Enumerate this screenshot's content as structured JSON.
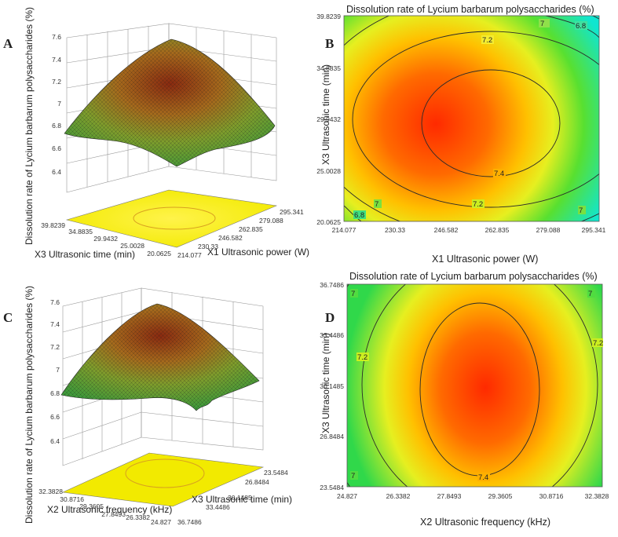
{
  "panels": [
    {
      "id": "A",
      "type": "surface3d",
      "zlabel": "Dissolution rate of Lycium barbarum polysaccharides (%)",
      "zticks": [
        "7.6",
        "7.4",
        "7.2",
        "7",
        "6.8",
        "6.6",
        "6.4"
      ],
      "back_axis_label": "X3 Ultrasonic time (min)",
      "back_axis_ticks": [
        "39.8239",
        "34.8835",
        "29.9432",
        "25.0028",
        "20.0625"
      ],
      "front_axis_label": "X1 Ultrasonic power (W)",
      "front_axis_ticks": [
        "295.341",
        "279.088",
        "262.835",
        "246.582",
        "230.33",
        "214.077"
      ]
    },
    {
      "id": "B",
      "type": "contour",
      "title": "Dissolution rate of Lycium barbarum polysaccharides (%)",
      "xlabel": "X1 Ultrasonic power (W)",
      "ylabel": "X3 Ultrasonic time (min)",
      "xticks": [
        "214.077",
        "230.33",
        "246.582",
        "262.835",
        "279.088",
        "295.341"
      ],
      "yticks": [
        "39.8239",
        "34.8835",
        "29.9432",
        "25.0028",
        "20.0625"
      ],
      "contour_labels": [
        "7",
        "6.8",
        "7.2",
        "7.4",
        "7.2",
        "7",
        "6.8",
        "7"
      ]
    },
    {
      "id": "C",
      "type": "surface3d",
      "zlabel": "Dissolution rate of Lycium barbarum polysaccharides (%)",
      "zticks": [
        "7.6",
        "7.4",
        "7.2",
        "7",
        "6.8",
        "6.6",
        "6.4"
      ],
      "back_axis_label": "X2 Ultrasonic frequency (kHz)",
      "back_axis_ticks": [
        "32.3828",
        "30.8716",
        "29.3605",
        "27.8493",
        "26.3382",
        "24.827"
      ],
      "front_axis_label": "X3 Ultrasonic time (min)",
      "front_axis_ticks": [
        "23.5484",
        "26.8484",
        "30.1485",
        "33.4486",
        "36.7486"
      ]
    },
    {
      "id": "D",
      "type": "contour",
      "title": "Dissolution rate of Lycium barbarum polysaccharides (%)",
      "xlabel": "X2 Ultrasonic frequency (kHz)",
      "ylabel": "X3 Ultrasonic time (min)",
      "xticks": [
        "24.827",
        "26.3382",
        "27.8493",
        "29.3605",
        "30.8716",
        "32.3828"
      ],
      "yticks": [
        "36.7486",
        "33.4486",
        "30.1485",
        "26.8484",
        "23.5484"
      ],
      "contour_labels": [
        "7",
        "7",
        "7.2",
        "7.2",
        "7",
        "7.4"
      ]
    }
  ],
  "chart_data": [
    {
      "type": "surface",
      "title": "",
      "x_name": "X1 Ultrasonic power (W)",
      "x_range": [
        214.077,
        295.341
      ],
      "y_name": "X3 Ultrasonic time (min)",
      "y_range": [
        20.0625,
        39.8239
      ],
      "z_name": "Dissolution rate of Lycium barbarum polysaccharides (%)",
      "z_range": [
        6.4,
        7.6
      ],
      "z_max_approx": 7.5
    },
    {
      "type": "contour",
      "title": "Dissolution rate of Lycium barbarum polysaccharides (%)",
      "x_range": [
        214.077,
        295.341
      ],
      "y_range": [
        20.0625,
        39.8239
      ],
      "contour_levels": [
        6.8,
        7.0,
        7.2,
        7.4
      ]
    },
    {
      "type": "surface",
      "title": "",
      "x_name": "X2 Ultrasonic frequency (kHz)",
      "x_range": [
        24.827,
        32.3828
      ],
      "y_name": "X3 Ultrasonic time (min)",
      "y_range": [
        23.5484,
        36.7486
      ],
      "z_name": "Dissolution rate of Lycium barbarum polysaccharides (%)",
      "z_range": [
        6.4,
        7.6
      ],
      "z_max_approx": 7.5
    },
    {
      "type": "contour",
      "title": "Dissolution rate of Lycium barbarum polysaccharides (%)",
      "x_range": [
        24.827,
        32.3828
      ],
      "y_range": [
        23.5484,
        36.7486
      ],
      "contour_levels": [
        7.0,
        7.2,
        7.4
      ]
    }
  ]
}
